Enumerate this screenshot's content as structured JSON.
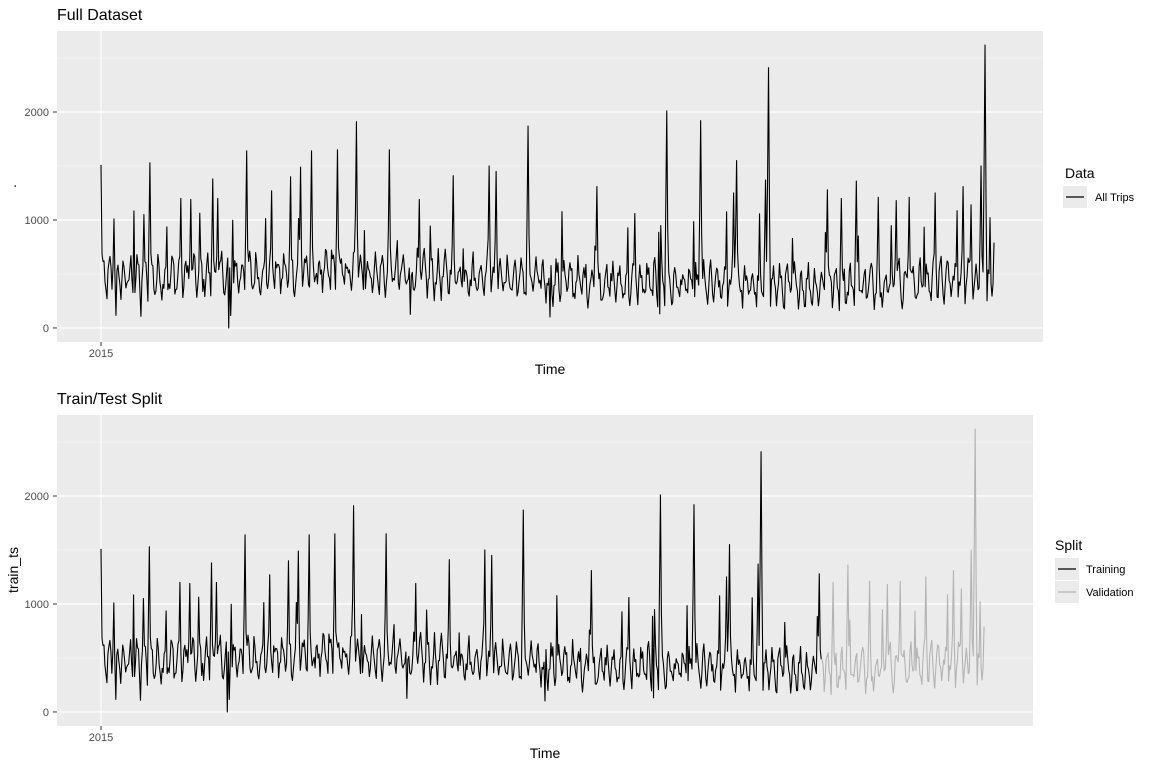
{
  "chart_data": [
    {
      "type": "line",
      "title": "Full Dataset",
      "xlabel": "Time",
      "ylabel": ".",
      "x_ticks": [
        "2015"
      ],
      "y_ticks": [
        0,
        1000,
        2000
      ],
      "ylim": [
        -130,
        2750
      ],
      "legend": {
        "title": "Data",
        "position": "right",
        "entries": [
          "All Trips"
        ]
      },
      "grid": true,
      "series": [
        {
          "name": "All Trips",
          "color": "#000000",
          "x_range": [
            0,
            825
          ],
          "approx_peaks": [
            {
              "x": 0,
              "y": 1510
            },
            {
              "x": 13,
              "y": 1010
            },
            {
              "x": 43,
              "y": 1050
            },
            {
              "x": 49,
              "y": 1530
            },
            {
              "x": 80,
              "y": 1200
            },
            {
              "x": 90,
              "y": 1190
            },
            {
              "x": 112,
              "y": 1380
            },
            {
              "x": 117,
              "y": 1200
            },
            {
              "x": 146,
              "y": 1640
            },
            {
              "x": 171,
              "y": 1270
            },
            {
              "x": 190,
              "y": 1400
            },
            {
              "x": 200,
              "y": 1490
            },
            {
              "x": 211,
              "y": 1640
            },
            {
              "x": 237,
              "y": 1650
            },
            {
              "x": 256,
              "y": 1910
            },
            {
              "x": 289,
              "y": 1650
            },
            {
              "x": 319,
              "y": 1190
            },
            {
              "x": 353,
              "y": 1410
            },
            {
              "x": 389,
              "y": 1500
            },
            {
              "x": 396,
              "y": 1450
            },
            {
              "x": 428,
              "y": 1870
            },
            {
              "x": 497,
              "y": 1310
            },
            {
              "x": 535,
              "y": 1060
            },
            {
              "x": 560,
              "y": 1610
            },
            {
              "x": 567,
              "y": 2010
            },
            {
              "x": 601,
              "y": 1920
            },
            {
              "x": 634,
              "y": 1250
            },
            {
              "x": 637,
              "y": 1550
            },
            {
              "x": 666,
              "y": 1370
            },
            {
              "x": 669,
              "y": 2410
            },
            {
              "x": 728,
              "y": 1280
            },
            {
              "x": 742,
              "y": 1200
            },
            {
              "x": 757,
              "y": 1360
            },
            {
              "x": 779,
              "y": 1210
            },
            {
              "x": 797,
              "y": 1180
            },
            {
              "x": 810,
              "y": 1210
            },
            {
              "x": 836,
              "y": 1250
            },
            {
              "x": 864,
              "y": 1310
            },
            {
              "x": 872,
              "y": 1140
            },
            {
              "x": 882,
              "y": 1500
            },
            {
              "x": 886,
              "y": 2620
            }
          ],
          "baseline": 450,
          "min": 0
        }
      ]
    },
    {
      "type": "line",
      "title": "Train/Test Split",
      "xlabel": "Time",
      "ylabel": "train_ts",
      "x_ticks": [
        "2015"
      ],
      "y_ticks": [
        0,
        1000,
        2000
      ],
      "ylim": [
        -130,
        2750
      ],
      "legend": {
        "title": "Split",
        "position": "right",
        "entries": [
          "Training",
          "Validation"
        ]
      },
      "grid": true,
      "series": [
        {
          "name": "Training",
          "color": "#000000",
          "x_range": [
            0,
            730
          ]
        },
        {
          "name": "Validation",
          "color": "#b3b3b3",
          "x_range": [
            730,
            895
          ]
        }
      ]
    }
  ]
}
